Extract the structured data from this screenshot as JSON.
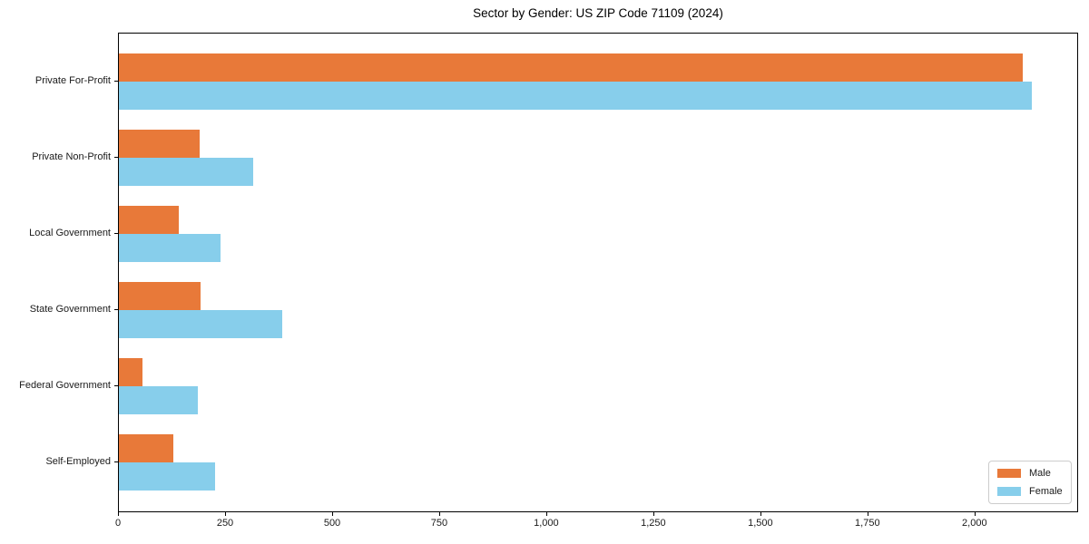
{
  "chart_data": {
    "type": "bar",
    "orientation": "horizontal",
    "title": "Sector by Gender: US ZIP Code 71109 (2024)",
    "xlabel": "",
    "ylabel": "",
    "categories": [
      "Private For-Profit",
      "Private Non-Profit",
      "Local Government",
      "State Government",
      "Federal Government",
      "Self-Employed"
    ],
    "series": [
      {
        "name": "Male",
        "color": "#e87939",
        "values": [
          2110,
          189,
          140,
          191,
          55,
          127
        ]
      },
      {
        "name": "Female",
        "color": "#87ceeb",
        "values": [
          2131,
          314,
          237,
          381,
          184,
          225
        ]
      }
    ],
    "xlim": [
      0,
      2242
    ],
    "xticks": [
      0,
      250,
      500,
      750,
      1000,
      1250,
      1500,
      1750,
      2000
    ],
    "xtick_labels": [
      "0",
      "250",
      "500",
      "750",
      "1,000",
      "1,250",
      "1,500",
      "1,750",
      "2,000"
    ],
    "grid": false,
    "legend_position": "lower right",
    "colors": {
      "male": "#e87939",
      "female": "#87ceeb",
      "spine": "#000000",
      "legend_border": "#cccccc"
    }
  }
}
